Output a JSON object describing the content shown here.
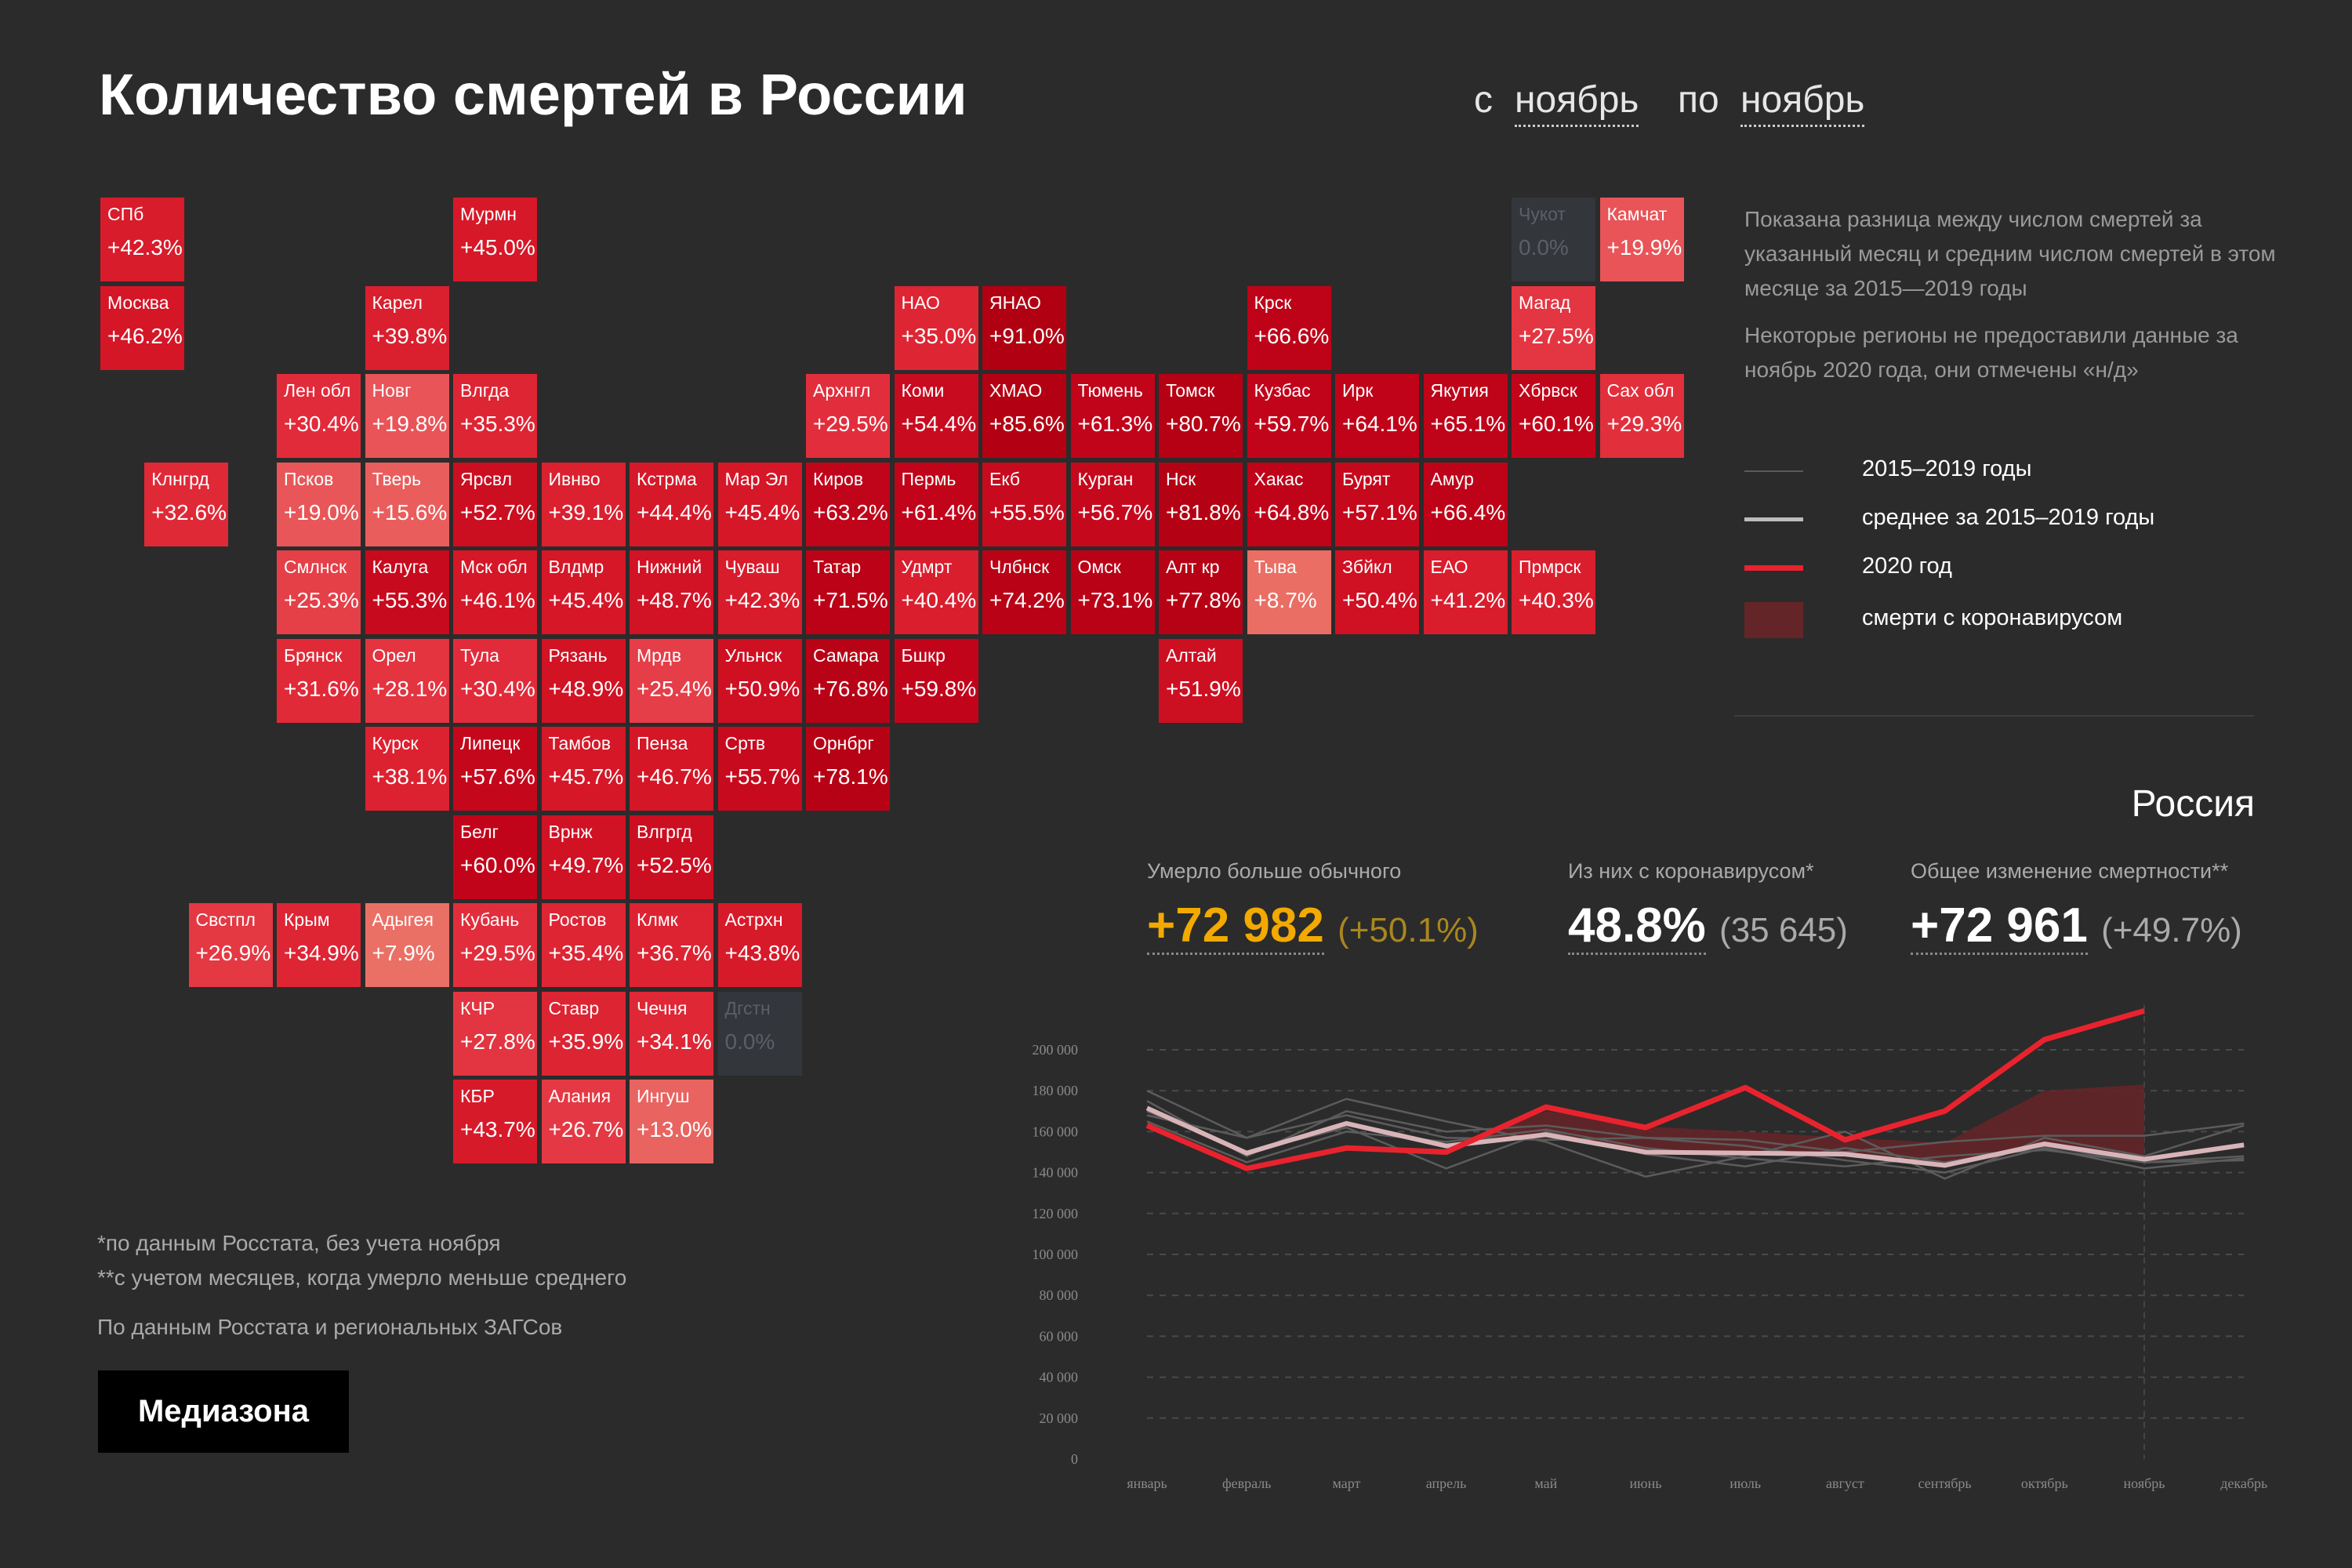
{
  "header": {
    "title": "Количество смертей в России",
    "from_label": "с",
    "from_value": "ноябрь",
    "to_label": "по",
    "to_value": "ноябрь"
  },
  "description": [
    "Показана разница между числом смертей за указанный месяц и средним числом смертей в этом месяце за 2015—2019 годы",
    "Некоторые регионы не предоставили данные за ноябрь 2020 года, они отмечены «н/д»"
  ],
  "legend": [
    {
      "label": "2015–2019 годы",
      "color": "#5a5a5a"
    },
    {
      "label": "среднее за 2015–2019 годы",
      "color": "#bdbdbd"
    },
    {
      "label": "2020 год",
      "color": "#e8232e"
    },
    {
      "label": "смерти с коронавирусом",
      "color": "#642528"
    }
  ],
  "region": "Россия",
  "stats": [
    {
      "label": "Умерло больше обычного",
      "value": "+72 982",
      "sub": "(+50.1%)",
      "color": "#f2a900"
    },
    {
      "label": "Из них с коронавирусом*",
      "value": "48.8%",
      "sub": "(35 645)",
      "color": "#ffffff"
    },
    {
      "label": "Общее изменение смертности**",
      "value": "+72 961",
      "sub": "(+49.7%)",
      "color": "#ffffff"
    }
  ],
  "footnotes": [
    "*по данным Росстата, без учета ноября",
    "**с учетом месяцев, когда умерло меньше среднего"
  ],
  "source": "По данным Росстата и региональных ЗАГСов",
  "logo": "Медиазона",
  "map_tiles": [
    {
      "row": 0,
      "col": 0,
      "label": "СПб",
      "value": "+42.3%"
    },
    {
      "row": 0,
      "col": 4,
      "label": "Мурмн",
      "value": "+45.0%"
    },
    {
      "row": 0,
      "col": 16,
      "label": "Чукот",
      "value": "0.0%",
      "nodata": true
    },
    {
      "row": 0,
      "col": 17,
      "label": "Камчат",
      "value": "+19.9%"
    },
    {
      "row": 1,
      "col": 0,
      "label": "Москва",
      "value": "+46.2%"
    },
    {
      "row": 1,
      "col": 3,
      "label": "Карел",
      "value": "+39.8%"
    },
    {
      "row": 1,
      "col": 9,
      "label": "НАО",
      "value": "+35.0%"
    },
    {
      "row": 1,
      "col": 10,
      "label": "ЯНАО",
      "value": "+91.0%"
    },
    {
      "row": 1,
      "col": 13,
      "label": "Крск",
      "value": "+66.6%"
    },
    {
      "row": 1,
      "col": 16,
      "label": "Магад",
      "value": "+27.5%"
    },
    {
      "row": 2,
      "col": 2,
      "label": "Лен обл",
      "value": "+30.4%"
    },
    {
      "row": 2,
      "col": 3,
      "label": "Новг",
      "value": "+19.8%"
    },
    {
      "row": 2,
      "col": 4,
      "label": "Влгда",
      "value": "+35.3%"
    },
    {
      "row": 2,
      "col": 8,
      "label": "Архнгл",
      "value": "+29.5%"
    },
    {
      "row": 2,
      "col": 9,
      "label": "Коми",
      "value": "+54.4%"
    },
    {
      "row": 2,
      "col": 10,
      "label": "ХМАО",
      "value": "+85.6%"
    },
    {
      "row": 2,
      "col": 11,
      "label": "Тюмень",
      "value": "+61.3%"
    },
    {
      "row": 2,
      "col": 12,
      "label": "Томск",
      "value": "+80.7%"
    },
    {
      "row": 2,
      "col": 13,
      "label": "Кузбас",
      "value": "+59.7%"
    },
    {
      "row": 2,
      "col": 14,
      "label": "Ирк",
      "value": "+64.1%"
    },
    {
      "row": 2,
      "col": 15,
      "label": "Якутия",
      "value": "+65.1%"
    },
    {
      "row": 2,
      "col": 16,
      "label": "Хбрвск",
      "value": "+60.1%"
    },
    {
      "row": 2,
      "col": 17,
      "label": "Сах обл",
      "value": "+29.3%"
    },
    {
      "row": 3,
      "col": 0.5,
      "label": "Клнгрд",
      "value": "+32.6%"
    },
    {
      "row": 3,
      "col": 2,
      "label": "Псков",
      "value": "+19.0%"
    },
    {
      "row": 3,
      "col": 3,
      "label": "Тверь",
      "value": "+15.6%"
    },
    {
      "row": 3,
      "col": 4,
      "label": "Ярсвл",
      "value": "+52.7%"
    },
    {
      "row": 3,
      "col": 5,
      "label": "Ивнво",
      "value": "+39.1%"
    },
    {
      "row": 3,
      "col": 6,
      "label": "Кстрма",
      "value": "+44.4%"
    },
    {
      "row": 3,
      "col": 7,
      "label": "Мар Эл",
      "value": "+45.4%"
    },
    {
      "row": 3,
      "col": 8,
      "label": "Киров",
      "value": "+63.2%"
    },
    {
      "row": 3,
      "col": 9,
      "label": "Пермь",
      "value": "+61.4%"
    },
    {
      "row": 3,
      "col": 10,
      "label": "Екб",
      "value": "+55.5%"
    },
    {
      "row": 3,
      "col": 11,
      "label": "Курган",
      "value": "+56.7%"
    },
    {
      "row": 3,
      "col": 12,
      "label": "Нск",
      "value": "+81.8%"
    },
    {
      "row": 3,
      "col": 13,
      "label": "Хакас",
      "value": "+64.8%"
    },
    {
      "row": 3,
      "col": 14,
      "label": "Бурят",
      "value": "+57.1%"
    },
    {
      "row": 3,
      "col": 15,
      "label": "Амур",
      "value": "+66.4%"
    },
    {
      "row": 4,
      "col": 2,
      "label": "Смлнск",
      "value": "+25.3%"
    },
    {
      "row": 4,
      "col": 3,
      "label": "Калуга",
      "value": "+55.3%"
    },
    {
      "row": 4,
      "col": 4,
      "label": "Мск обл",
      "value": "+46.1%"
    },
    {
      "row": 4,
      "col": 5,
      "label": "Влдмр",
      "value": "+45.4%"
    },
    {
      "row": 4,
      "col": 6,
      "label": "Нижний",
      "value": "+48.7%"
    },
    {
      "row": 4,
      "col": 7,
      "label": "Чуваш",
      "value": "+42.3%"
    },
    {
      "row": 4,
      "col": 8,
      "label": "Татар",
      "value": "+71.5%"
    },
    {
      "row": 4,
      "col": 9,
      "label": "Удмрт",
      "value": "+40.4%"
    },
    {
      "row": 4,
      "col": 10,
      "label": "Члбнск",
      "value": "+74.2%"
    },
    {
      "row": 4,
      "col": 11,
      "label": "Омск",
      "value": "+73.1%"
    },
    {
      "row": 4,
      "col": 12,
      "label": "Алт кр",
      "value": "+77.8%"
    },
    {
      "row": 4,
      "col": 13,
      "label": "Тыва",
      "value": "+8.7%"
    },
    {
      "row": 4,
      "col": 14,
      "label": "Збйкл",
      "value": "+50.4%"
    },
    {
      "row": 4,
      "col": 15,
      "label": "ЕАО",
      "value": "+41.2%"
    },
    {
      "row": 4,
      "col": 16,
      "label": "Прмрск",
      "value": "+40.3%"
    },
    {
      "row": 5,
      "col": 2,
      "label": "Брянск",
      "value": "+31.6%"
    },
    {
      "row": 5,
      "col": 3,
      "label": "Орел",
      "value": "+28.1%"
    },
    {
      "row": 5,
      "col": 4,
      "label": "Тула",
      "value": "+30.4%"
    },
    {
      "row": 5,
      "col": 5,
      "label": "Рязань",
      "value": "+48.9%"
    },
    {
      "row": 5,
      "col": 6,
      "label": "Мрдв",
      "value": "+25.4%"
    },
    {
      "row": 5,
      "col": 7,
      "label": "Ульнск",
      "value": "+50.9%"
    },
    {
      "row": 5,
      "col": 8,
      "label": "Самара",
      "value": "+76.8%"
    },
    {
      "row": 5,
      "col": 9,
      "label": "Бшкр",
      "value": "+59.8%"
    },
    {
      "row": 5,
      "col": 12,
      "label": "Алтай",
      "value": "+51.9%"
    },
    {
      "row": 6,
      "col": 3,
      "label": "Курск",
      "value": "+38.1%"
    },
    {
      "row": 6,
      "col": 4,
      "label": "Липецк",
      "value": "+57.6%"
    },
    {
      "row": 6,
      "col": 5,
      "label": "Тамбов",
      "value": "+45.7%"
    },
    {
      "row": 6,
      "col": 6,
      "label": "Пенза",
      "value": "+46.7%"
    },
    {
      "row": 6,
      "col": 7,
      "label": "Сртв",
      "value": "+55.7%"
    },
    {
      "row": 6,
      "col": 8,
      "label": "Орнбрг",
      "value": "+78.1%"
    },
    {
      "row": 7,
      "col": 4,
      "label": "Белг",
      "value": "+60.0%"
    },
    {
      "row": 7,
      "col": 5,
      "label": "Врнж",
      "value": "+49.7%"
    },
    {
      "row": 7,
      "col": 6,
      "label": "Влгргд",
      "value": "+52.5%"
    },
    {
      "row": 8,
      "col": 1,
      "label": "Свстпл",
      "value": "+26.9%"
    },
    {
      "row": 8,
      "col": 2,
      "label": "Крым",
      "value": "+34.9%"
    },
    {
      "row": 8,
      "col": 3,
      "label": "Адыгея",
      "value": "+7.9%"
    },
    {
      "row": 8,
      "col": 4,
      "label": "Кубань",
      "value": "+29.5%"
    },
    {
      "row": 8,
      "col": 5,
      "label": "Ростов",
      "value": "+35.4%"
    },
    {
      "row": 8,
      "col": 6,
      "label": "Клмк",
      "value": "+36.7%"
    },
    {
      "row": 8,
      "col": 7,
      "label": "Астрхн",
      "value": "+43.8%"
    },
    {
      "row": 9,
      "col": 4,
      "label": "КЧР",
      "value": "+27.8%"
    },
    {
      "row": 9,
      "col": 5,
      "label": "Ставр",
      "value": "+35.9%"
    },
    {
      "row": 9,
      "col": 6,
      "label": "Чечня",
      "value": "+34.1%"
    },
    {
      "row": 9,
      "col": 7,
      "label": "Дгстн",
      "value": "0.0%",
      "nodata": true
    },
    {
      "row": 10,
      "col": 4,
      "label": "КБР",
      "value": "+43.7%"
    },
    {
      "row": 10,
      "col": 5,
      "label": "Алания",
      "value": "+26.7%"
    },
    {
      "row": 10,
      "col": 6,
      "label": "Ингуш",
      "value": "+13.0%"
    }
  ],
  "chart_data": {
    "type": "line",
    "categories": [
      "январь",
      "февраль",
      "март",
      "апрель",
      "май",
      "июнь",
      "июль",
      "август",
      "сентябрь",
      "октябрь",
      "ноябрь",
      "декабрь"
    ],
    "ylim": [
      0,
      220000
    ],
    "yticks": [
      0,
      20000,
      40000,
      60000,
      80000,
      100000,
      120000,
      140000,
      160000,
      180000,
      200000
    ],
    "ytick_labels": [
      "0",
      "20 000",
      "40 000",
      "60 000",
      "80 000",
      "100 000",
      "120 000",
      "140 000",
      "160 000",
      "180 000",
      "200 000"
    ],
    "grid": true,
    "years_2015_2019": [
      [
        180000,
        157000,
        176000,
        165000,
        155000,
        138000,
        148000,
        160000,
        137000,
        157000,
        148000,
        163000
      ],
      [
        175000,
        148000,
        170000,
        160000,
        163000,
        157000,
        153000,
        146000,
        140000,
        152000,
        142000,
        147000
      ],
      [
        170000,
        150000,
        162000,
        142000,
        160000,
        149000,
        143000,
        152000,
        145000,
        153000,
        145000,
        148000
      ],
      [
        168000,
        157000,
        168000,
        157000,
        156000,
        157000,
        156000,
        150000,
        155000,
        158000,
        158000,
        164000
      ],
      [
        165000,
        145000,
        160000,
        155000,
        161000,
        152000,
        147000,
        143000,
        148000,
        151000,
        145000,
        146000
      ]
    ],
    "mean_2015_2019": [
      171500,
      149500,
      164000,
      153000,
      158500,
      150000,
      149500,
      149000,
      143500,
      154000,
      146500,
      153500
    ],
    "year_2020": [
      163000,
      142000,
      152000,
      150000,
      172000,
      162000,
      181500,
      156000,
      170000,
      205000,
      219000
    ],
    "covid_upper": [
      null,
      null,
      null,
      153000,
      170000,
      162500,
      160000,
      157000,
      154500,
      180000,
      183000
    ],
    "marker_month": "ноябрь"
  }
}
